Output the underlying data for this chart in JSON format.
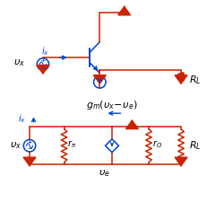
{
  "fig_width": 2.5,
  "fig_height": 2.35,
  "dpi": 100,
  "bg_color": "#ffffff",
  "red": "#cc2200",
  "blue": "#0044cc",
  "lw": 1.1
}
